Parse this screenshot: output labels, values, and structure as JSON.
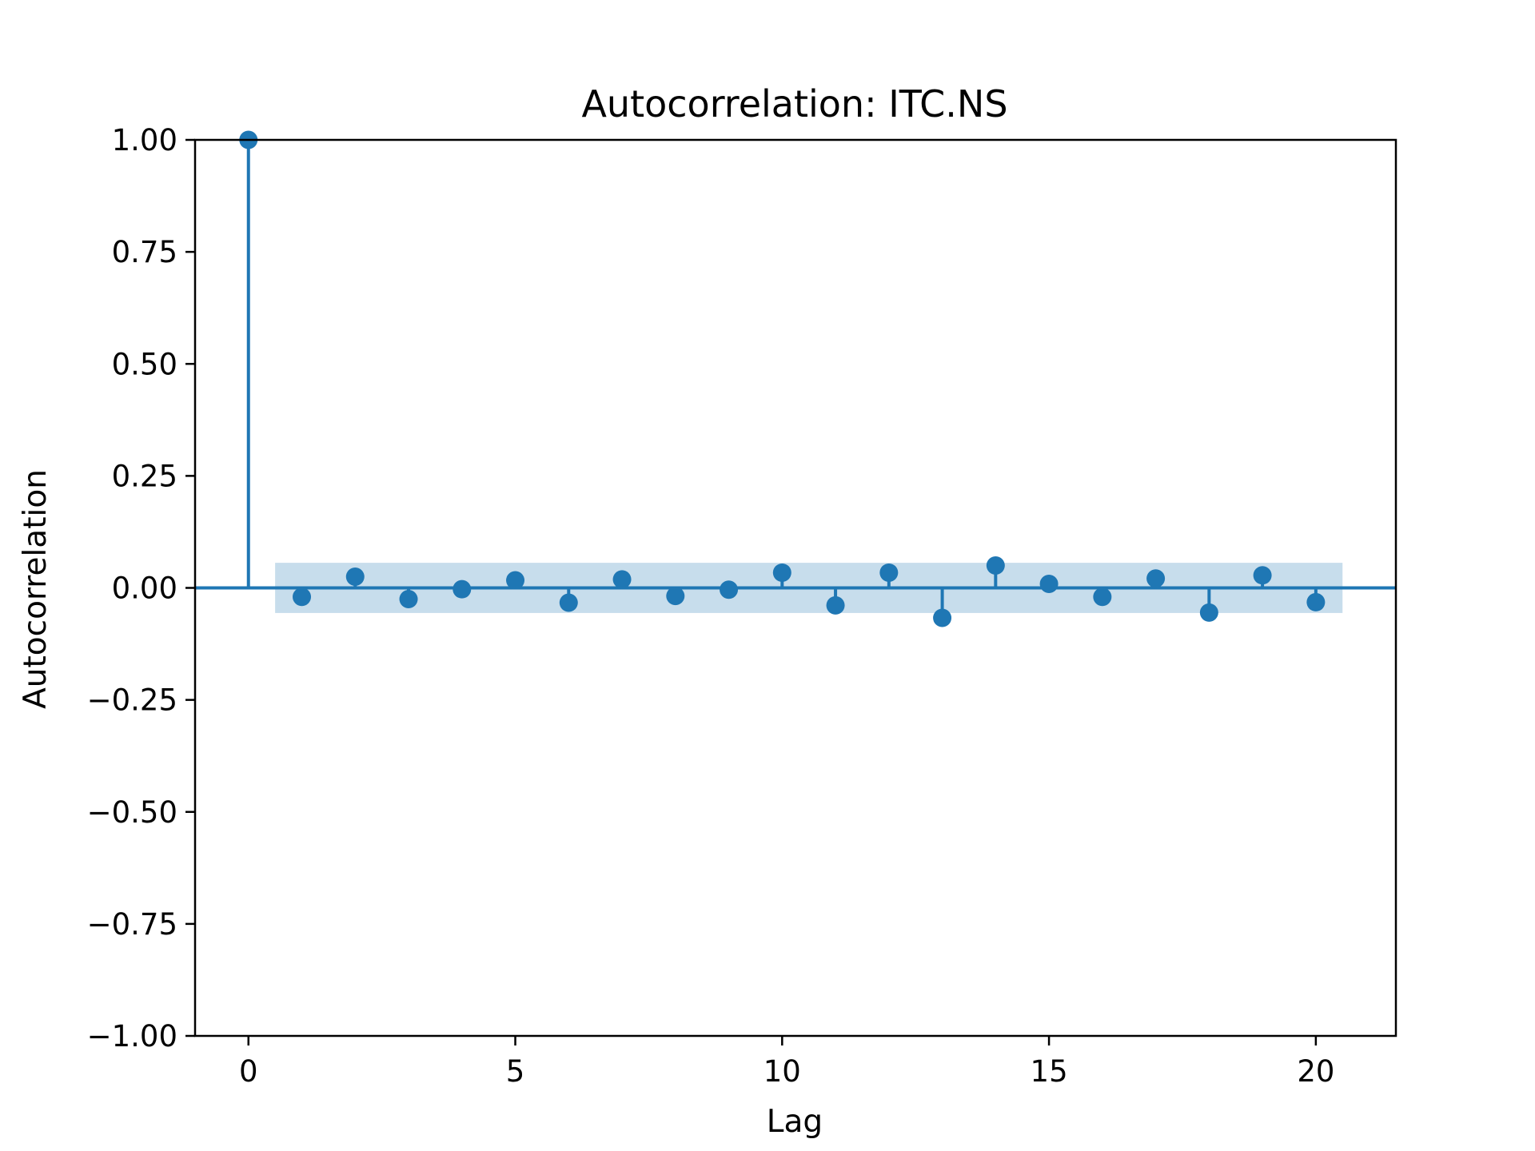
{
  "chart_data": {
    "type": "stem",
    "title": "Autocorrelation: ITC.NS",
    "xlabel": "Lag",
    "ylabel": "Autocorrelation",
    "xlim": [
      -1,
      21.5
    ],
    "ylim": [
      -1.0,
      1.0
    ],
    "xticks": [
      0,
      5,
      10,
      15,
      20
    ],
    "xtick_labels": [
      "0",
      "5",
      "10",
      "15",
      "20"
    ],
    "yticks": [
      1.0,
      0.75,
      0.5,
      0.25,
      0.0,
      -0.25,
      -0.5,
      -0.75,
      -1.0
    ],
    "ytick_labels": [
      "1.00",
      "0.75",
      "0.50",
      "0.25",
      "0.00",
      "−0.25",
      "−0.50",
      "−0.75",
      "−1.00"
    ],
    "x": [
      0,
      1,
      2,
      3,
      4,
      5,
      6,
      7,
      8,
      9,
      10,
      11,
      12,
      13,
      14,
      15,
      16,
      17,
      18,
      19,
      20
    ],
    "values": [
      1.0,
      -0.02,
      0.025,
      -0.025,
      -0.003,
      0.017,
      -0.033,
      0.019,
      -0.018,
      -0.004,
      0.034,
      -0.039,
      0.034,
      -0.067,
      0.05,
      0.009,
      -0.02,
      0.021,
      -0.055,
      0.028,
      -0.032
    ],
    "confidence_band": {
      "x_range": [
        0.5,
        20.5
      ],
      "lower": -0.056,
      "upper": 0.056
    },
    "grid": false,
    "colors": {
      "series": "#1f77b4",
      "band": "#1f77b4",
      "axes": "#000000"
    }
  }
}
